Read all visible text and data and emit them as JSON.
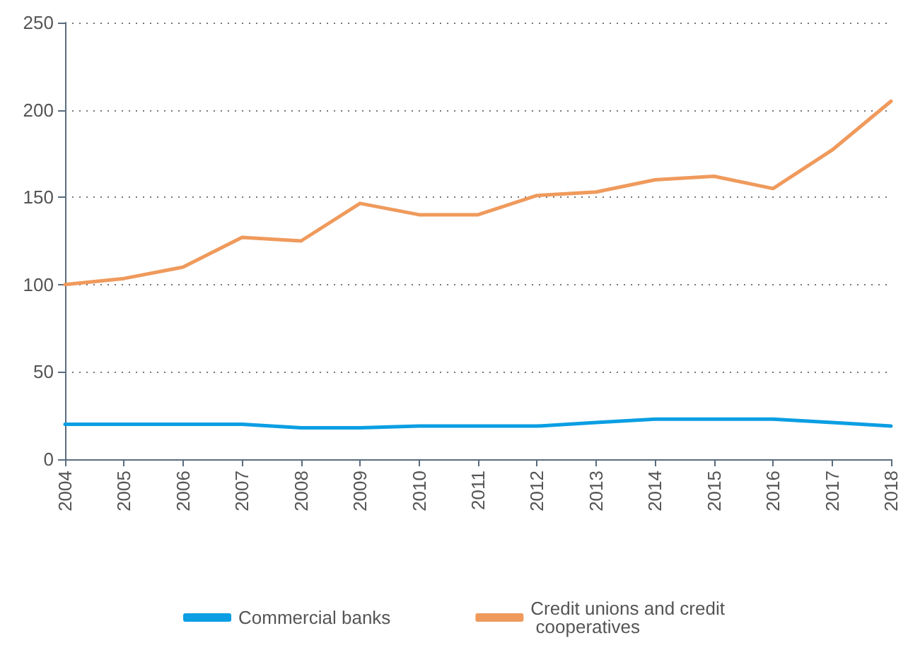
{
  "chart_data": {
    "type": "line",
    "categories": [
      "2004",
      "2005",
      "2006",
      "2007",
      "2008",
      "2009",
      "2010",
      "2011",
      "2012",
      "2013",
      "2014",
      "2015",
      "2016",
      "2017",
      "2018"
    ],
    "series": [
      {
        "name": "Commercial banks",
        "color": "#0b9ee3",
        "values": [
          20,
          20,
          20,
          20,
          18,
          18,
          19,
          19,
          19,
          21,
          23,
          23,
          23,
          21,
          19
        ]
      },
      {
        "name": "Credit unions and credit cooperatives",
        "color": "#ef9a5c",
        "values": [
          100,
          103.5,
          110,
          127,
          125,
          146.5,
          140,
          140,
          151,
          153,
          160,
          162,
          155,
          177,
          205
        ]
      }
    ],
    "ylim": [
      0,
      250
    ],
    "yticks": [
      0,
      50,
      100,
      150,
      200,
      250
    ],
    "grid": "y",
    "legend": "bottom",
    "marker": "none",
    "line_style": "solid"
  }
}
